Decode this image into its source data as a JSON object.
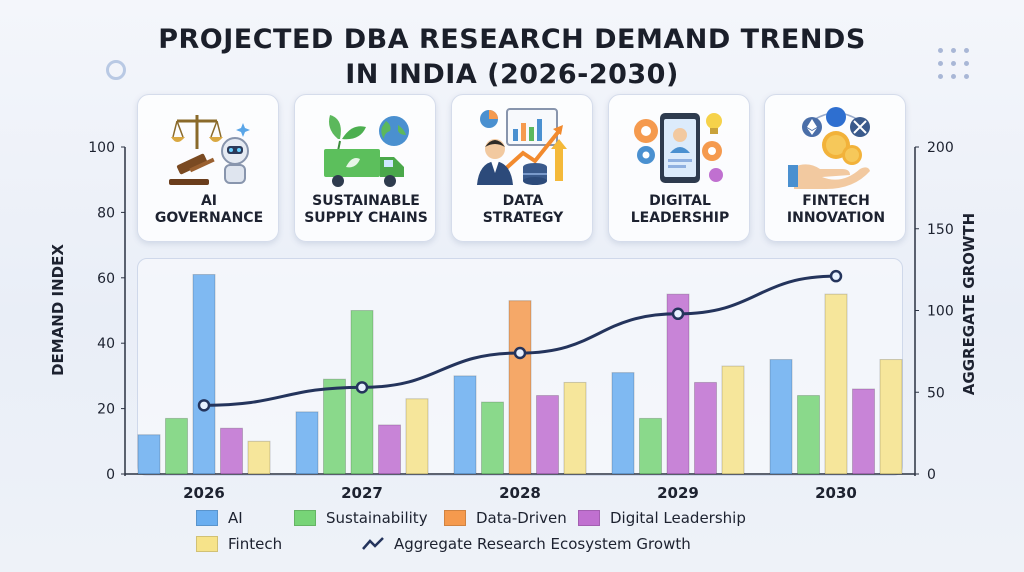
{
  "title": {
    "line1": "PROJECTED DBA RESEARCH DEMAND TRENDS",
    "line2": "IN INDIA (2026-2030)"
  },
  "cards": [
    {
      "line1": "AI",
      "line2": "GOVERNANCE",
      "icon": "gavel-robot-icon"
    },
    {
      "line1": "SUSTAINABLE",
      "line2": "SUPPLY CHAINS",
      "icon": "truck-globe-icon"
    },
    {
      "line1": "DATA",
      "line2": "STRATEGY",
      "icon": "data-analyst-icon"
    },
    {
      "line1": "DIGITAL",
      "line2": "LEADERSHIP",
      "icon": "tablet-gears-icon"
    },
    {
      "line1": "FINTECH",
      "line2": "INNOVATION",
      "icon": "coins-hand-icon"
    }
  ],
  "chart_data": {
    "type": "bar",
    "categories": [
      "2026",
      "2027",
      "2028",
      "2029",
      "2030"
    ],
    "series": [
      {
        "name": "AI",
        "values": [
          12,
          19,
          30,
          31,
          35
        ],
        "color": "#6aaef0"
      },
      {
        "name": "Sustainability",
        "values": [
          17,
          29,
          22,
          17,
          24
        ],
        "color": "#77d477"
      },
      {
        "name": "Data-Driven",
        "values": [
          61,
          50,
          53,
          55,
          55
        ],
        "color": "#f59a4e"
      },
      {
        "name": "Digital Leadership",
        "values": [
          14,
          15,
          24,
          28,
          26
        ],
        "color": "#c070d0"
      },
      {
        "name": "Fintech",
        "values": [
          10,
          23,
          28,
          33,
          35
        ],
        "color": "#f6e38a"
      }
    ],
    "tall_bar_colors": [
      "#6aaef0",
      "#77d477",
      "#f59a4e",
      "#c070d0",
      "#f6e38a"
    ],
    "line": {
      "name": "Aggregate Research Ecosystem Growth",
      "values": [
        42,
        53,
        74,
        98,
        121
      ],
      "color": "#24345c"
    },
    "ylabel": "DEMAND INDEX",
    "y2label": "AGGREGATE GROWTH",
    "ylim": [
      0,
      100
    ],
    "y2lim": [
      0,
      200
    ],
    "yticks": [
      "0",
      "20",
      "40",
      "60",
      "80",
      "100"
    ],
    "y2ticks": [
      "0",
      "50",
      "100",
      "150",
      "200"
    ]
  },
  "legend": {
    "ai": "AI",
    "sustainability": "Sustainability",
    "data_driven": "Data-Driven",
    "digital_leadership": "Digital Leadership",
    "fintech": "Fintech",
    "aggregate": "Aggregate Research Ecosystem Growth"
  }
}
